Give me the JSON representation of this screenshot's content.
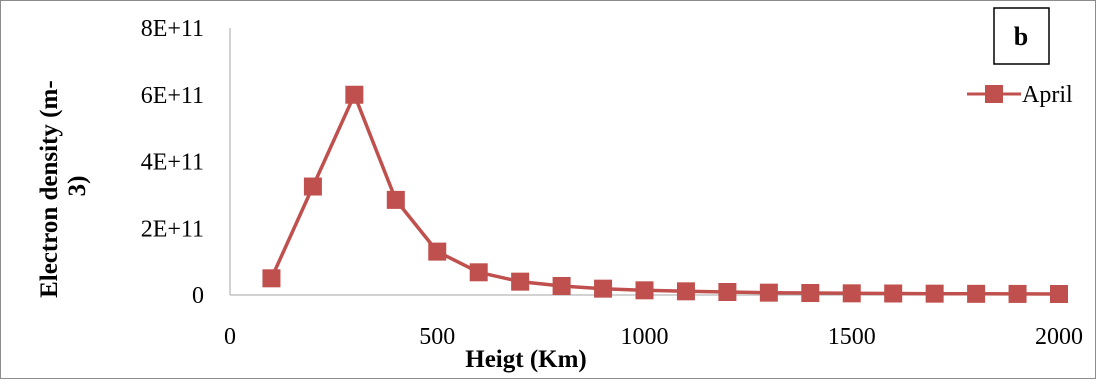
{
  "chart_data": {
    "type": "line",
    "xlabel": "Heigt (Km)",
    "ylabel_lines": [
      "Electron density (m-",
      "3)"
    ],
    "panel_label": "b",
    "xlim": [
      0,
      2000
    ],
    "ylim": [
      0,
      800000000000
    ],
    "x_ticks": [
      0,
      500,
      1000,
      1500,
      2000
    ],
    "x_tick_labels": [
      "0",
      "500",
      "1000",
      "1500",
      "2000"
    ],
    "y_ticks": [
      0,
      200000000000,
      400000000000,
      600000000000,
      800000000000
    ],
    "y_tick_labels": [
      "0",
      "2E+11",
      "4E+11",
      "6E+11",
      "8E+11"
    ],
    "grid": false,
    "legend_position": "right",
    "series": [
      {
        "name": "April",
        "color": "#c0504d",
        "marker": "square",
        "x": [
          100,
          200,
          300,
          400,
          500,
          600,
          700,
          800,
          900,
          1000,
          1100,
          1200,
          1300,
          1400,
          1500,
          1600,
          1700,
          1800,
          1900,
          2000
        ],
        "values": [
          50000000000,
          325000000000,
          600000000000,
          285000000000,
          130000000000,
          68000000000,
          40000000000,
          27000000000,
          19000000000,
          14000000000,
          11000000000,
          9000000000,
          7000000000,
          6000000000,
          5000000000,
          4500000000,
          4000000000,
          3500000000,
          3200000000,
          3000000000
        ]
      }
    ]
  }
}
